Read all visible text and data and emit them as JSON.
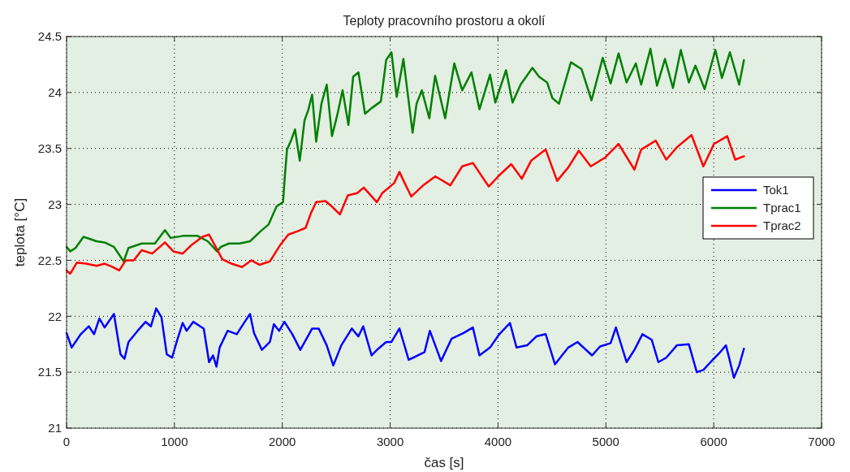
{
  "chart_data": {
    "type": "line",
    "title": "Teploty pracovního prostoru a okolí",
    "xlabel": "čas [s]",
    "ylabel": "teplota [°C]",
    "xlim": [
      0,
      7000
    ],
    "xticks": [
      0,
      1000,
      2000,
      3000,
      4000,
      5000,
      6000,
      7000
    ],
    "ylim": [
      21,
      24.5
    ],
    "yticks": [
      21,
      21.5,
      22,
      22.5,
      23,
      23.5,
      24,
      24.5
    ],
    "grid": true,
    "legend": "right",
    "line_style": "solid",
    "marker": "none",
    "series": [
      {
        "name": "Tok1",
        "color": "#0000ff",
        "x": [
          0,
          47,
          132,
          206,
          255,
          304,
          353,
          439,
          500,
          537,
          574,
          659,
          733,
          782,
          831,
          880,
          929,
          978,
          1027,
          1076,
          1113,
          1174,
          1272,
          1321,
          1358,
          1390,
          1419,
          1493,
          1578,
          1652,
          1701,
          1738,
          1811,
          1885,
          1922,
          1971,
          2020,
          2093,
          2167,
          2277,
          2338,
          2412,
          2473,
          2547,
          2645,
          2706,
          2750,
          2828,
          2890,
          2963,
          3012,
          3086,
          3172,
          3319,
          3368,
          3472,
          3570,
          3681,
          3767,
          3828,
          3926,
          4012,
          4111,
          4172,
          4270,
          4356,
          4442,
          4528,
          4651,
          4737,
          4872,
          4946,
          5044,
          5093,
          5192,
          5265,
          5339,
          5425,
          5487,
          5560,
          5658,
          5769,
          5843,
          5904,
          5990,
          6052,
          6113,
          6145,
          6187,
          6236,
          6280
        ],
        "values": [
          21.85,
          21.72,
          21.84,
          21.91,
          21.84,
          21.98,
          21.9,
          22.02,
          21.66,
          21.62,
          21.77,
          21.87,
          21.95,
          21.91,
          22.07,
          21.99,
          21.66,
          21.63,
          21.79,
          21.94,
          21.87,
          21.95,
          21.89,
          21.59,
          21.65,
          21.55,
          21.72,
          21.87,
          21.84,
          21.95,
          22.02,
          21.85,
          21.7,
          21.77,
          21.93,
          21.87,
          21.95,
          21.84,
          21.7,
          21.89,
          21.89,
          21.74,
          21.56,
          21.74,
          21.89,
          21.82,
          21.91,
          21.65,
          21.71,
          21.77,
          21.77,
          21.89,
          21.61,
          21.68,
          21.87,
          21.6,
          21.8,
          21.85,
          21.9,
          21.65,
          21.72,
          21.84,
          21.94,
          21.72,
          21.74,
          21.82,
          21.84,
          21.57,
          21.72,
          21.77,
          21.65,
          21.73,
          21.76,
          21.9,
          21.59,
          21.7,
          21.84,
          21.79,
          21.59,
          21.63,
          21.74,
          21.75,
          21.5,
          21.52,
          21.61,
          21.67,
          21.74,
          21.62,
          21.45,
          21.56,
          21.71
        ]
      },
      {
        "name": "Tprac1",
        "color": "#008000",
        "x": [
          0,
          34,
          83,
          157,
          279,
          353,
          439,
          488,
          529,
          574,
          696,
          819,
          912,
          966,
          1088,
          1211,
          1309,
          1395,
          1431,
          1505,
          1603,
          1701,
          1799,
          1873,
          1946,
          2007,
          2025,
          2044,
          2081,
          2118,
          2162,
          2206,
          2240,
          2277,
          2314,
          2363,
          2412,
          2461,
          2510,
          2559,
          2613,
          2657,
          2706,
          2767,
          2828,
          2914,
          2963,
          3012,
          3061,
          3123,
          3208,
          3245,
          3294,
          3363,
          3417,
          3510,
          3595,
          3668,
          3754,
          3828,
          3926,
          3975,
          4074,
          4135,
          4209,
          4319,
          4381,
          4455,
          4504,
          4565,
          4676,
          4774,
          4867,
          4971,
          5044,
          5118,
          5192,
          5278,
          5327,
          5413,
          5474,
          5548,
          5622,
          5695,
          5769,
          5830,
          5916,
          6015,
          6076,
          6150,
          6236,
          6280
        ],
        "values": [
          22.62,
          22.58,
          22.61,
          22.71,
          22.67,
          22.66,
          22.62,
          22.55,
          22.49,
          22.61,
          22.65,
          22.65,
          22.77,
          22.7,
          22.72,
          22.72,
          22.67,
          22.58,
          22.62,
          22.65,
          22.65,
          22.67,
          22.76,
          22.82,
          22.98,
          23.02,
          23.27,
          23.49,
          23.57,
          23.67,
          23.39,
          23.75,
          23.84,
          23.98,
          23.56,
          23.9,
          24.07,
          23.61,
          23.8,
          24.02,
          23.71,
          24.14,
          24.18,
          23.81,
          23.86,
          23.92,
          24.29,
          24.36,
          23.96,
          24.3,
          23.64,
          23.9,
          24.02,
          23.77,
          24.15,
          23.77,
          24.26,
          24.02,
          24.18,
          23.85,
          24.16,
          23.91,
          24.2,
          23.91,
          24.07,
          24.22,
          24.14,
          24.09,
          23.95,
          23.9,
          24.27,
          24.21,
          23.93,
          24.31,
          24.08,
          24.35,
          24.09,
          24.26,
          24.07,
          24.39,
          24.06,
          24.3,
          24.04,
          24.38,
          24.09,
          24.24,
          24.03,
          24.38,
          24.13,
          24.36,
          24.07,
          24.29
        ]
      },
      {
        "name": "Tprac2",
        "color": "#ff0000",
        "x": [
          0,
          34,
          96,
          181,
          279,
          353,
          426,
          488,
          549,
          623,
          696,
          794,
          912,
          990,
          1076,
          1162,
          1260,
          1321,
          1382,
          1444,
          1529,
          1627,
          1713,
          1787,
          1885,
          1983,
          2056,
          2142,
          2216,
          2265,
          2314,
          2400,
          2461,
          2534,
          2608,
          2694,
          2755,
          2877,
          2926,
          3037,
          3086,
          3135,
          3196,
          3306,
          3417,
          3472,
          3558,
          3668,
          3767,
          3914,
          4012,
          4123,
          4221,
          4307,
          4442,
          4548,
          4651,
          4749,
          4860,
          4995,
          5118,
          5265,
          5327,
          5462,
          5560,
          5658,
          5794,
          5904,
          6002,
          6125,
          6199,
          6280
        ],
        "values": [
          22.41,
          22.38,
          22.48,
          22.47,
          22.45,
          22.47,
          22.44,
          22.41,
          22.5,
          22.5,
          22.59,
          22.56,
          22.66,
          22.58,
          22.56,
          22.64,
          22.71,
          22.73,
          22.62,
          22.51,
          22.47,
          22.44,
          22.5,
          22.46,
          22.49,
          22.64,
          22.73,
          22.76,
          22.79,
          22.92,
          23.02,
          23.03,
          22.98,
          22.91,
          23.08,
          23.1,
          23.15,
          23.02,
          23.1,
          23.19,
          23.29,
          23.19,
          23.07,
          23.17,
          23.25,
          23.22,
          23.17,
          23.34,
          23.37,
          23.16,
          23.26,
          23.36,
          23.23,
          23.39,
          23.49,
          23.21,
          23.33,
          23.48,
          23.34,
          23.42,
          23.54,
          23.31,
          23.49,
          23.57,
          23.4,
          23.51,
          23.62,
          23.34,
          23.54,
          23.61,
          23.4,
          23.43
        ]
      }
    ]
  }
}
